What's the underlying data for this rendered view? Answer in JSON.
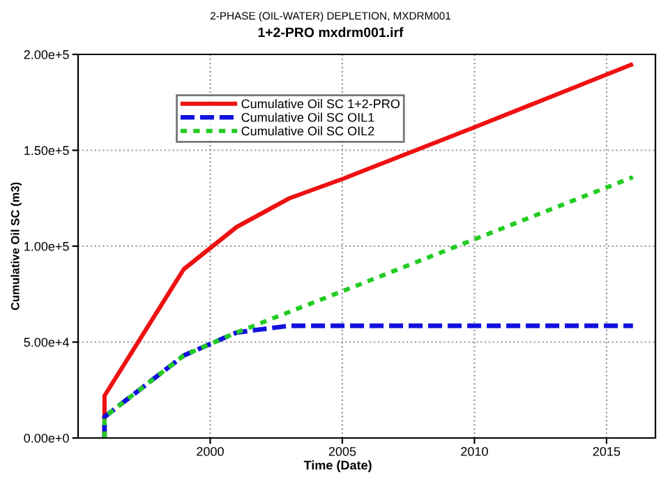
{
  "chart_data": {
    "type": "line",
    "title": "2-PHASE (OIL-WATER) DEPLETION, MXDRM001",
    "subtitle": "1+2-PRO mxdrm001.irf",
    "xlabel": "Time (Date)",
    "ylabel": "Cumulative Oil SC (m3)",
    "series": [
      {
        "name": "Cumulative Oil SC 1+2-PRO",
        "color": "#ee1111",
        "line_style": "solid",
        "x": [
          1996,
          1996,
          1999,
          2001,
          2003,
          2005,
          2010,
          2016
        ],
        "values": [
          0,
          22000,
          88000,
          110000,
          125000,
          135000,
          162000,
          195000
        ]
      },
      {
        "name": "Cumulative Oil SC OIL1",
        "color": "#1111dd",
        "line_style": "dashed",
        "x": [
          1996,
          1996,
          1999,
          2000,
          2001,
          2003,
          2016
        ],
        "values": [
          0,
          11000,
          43000,
          49000,
          55000,
          58500,
          58500
        ]
      },
      {
        "name": "Cumulative Oil SC OIL2",
        "color": "#22cc22",
        "line_style": "dotted",
        "x": [
          1996,
          1996,
          1999,
          2000,
          2001,
          2005,
          2010,
          2016
        ],
        "values": [
          0,
          11000,
          43000,
          49000,
          55000,
          76500,
          103600,
          136000
        ]
      }
    ],
    "xlim": [
      1995,
      2016.85
    ],
    "xticks": [
      2000,
      2005,
      2010,
      2015
    ],
    "ylim": [
      0,
      200000
    ],
    "yticks": [
      {
        "value": 0,
        "label": "0.00e+0"
      },
      {
        "value": 50000,
        "label": "5.00e+4"
      },
      {
        "value": 100000,
        "label": "1.00e+5"
      },
      {
        "value": 150000,
        "label": "1.50e+5"
      },
      {
        "value": 200000,
        "label": "2.00e+5"
      }
    ],
    "grid": true,
    "legend": "top left",
    "marker": "none"
  }
}
